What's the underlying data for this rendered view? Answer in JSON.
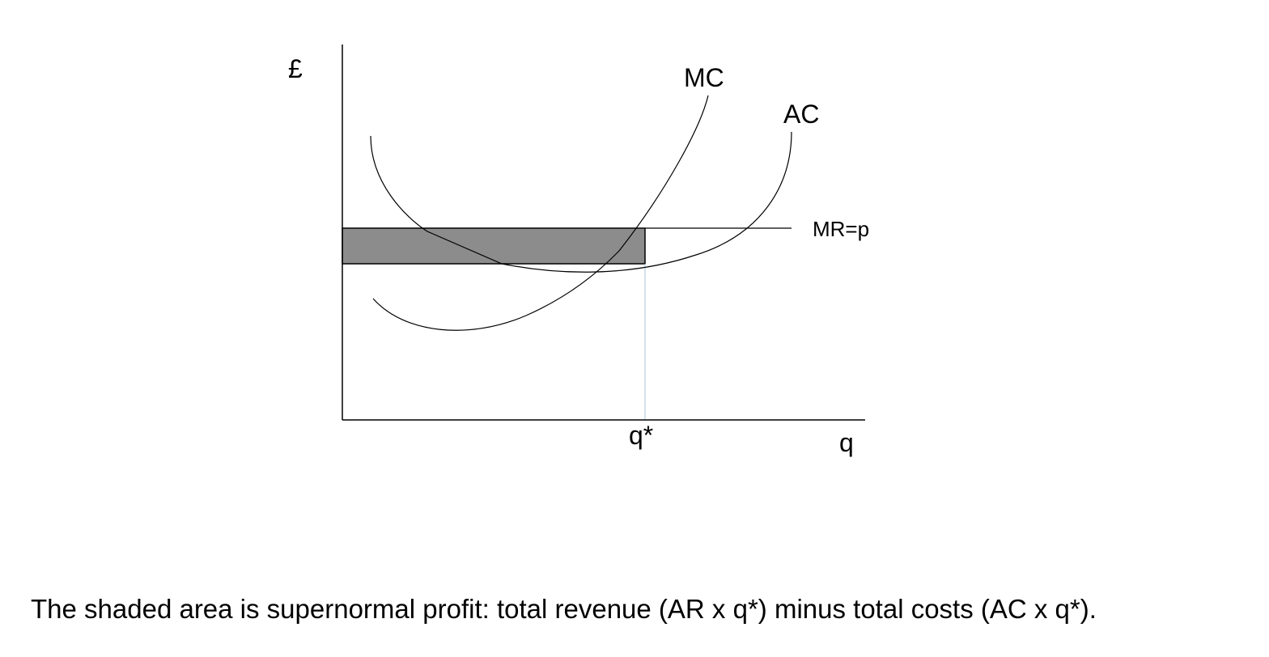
{
  "diagram": {
    "y_axis_label": "£",
    "x_axis_label": "q",
    "quantity_label": "q*",
    "curves": {
      "mc_label": "MC",
      "ac_label": "AC",
      "mr_label": "MR=p"
    },
    "colors": {
      "profit_area": "#8c8c8c",
      "curve": "#000000",
      "quantity_guide": "#a9c4d8"
    }
  },
  "caption": "The shaded area is supernormal profit: total revenue (AR x q*) minus total costs (AC x q*)."
}
